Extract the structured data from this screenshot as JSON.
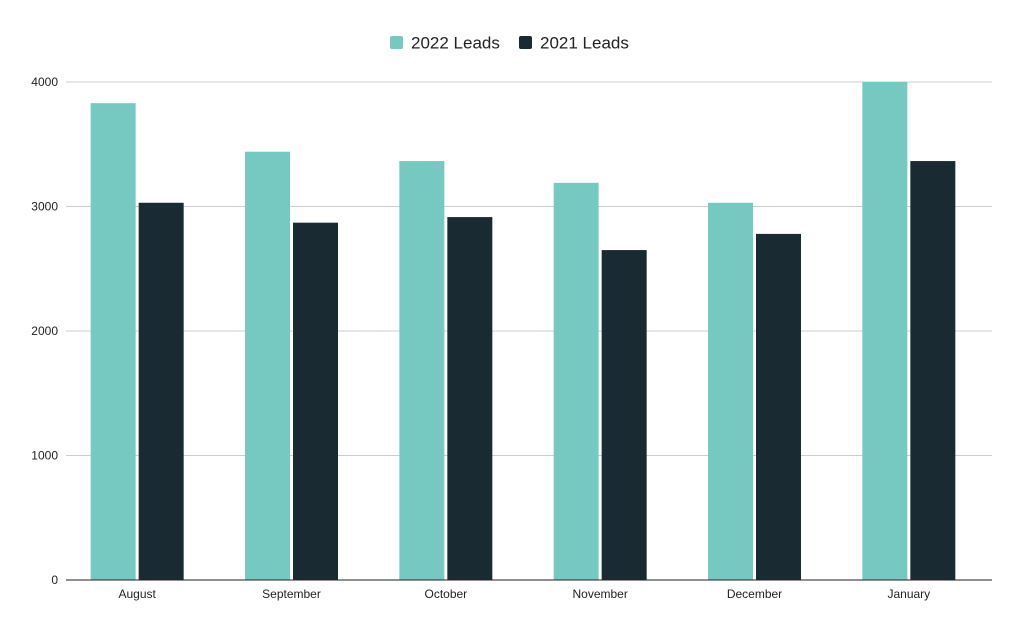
{
  "chart_data": {
    "type": "bar",
    "title": "",
    "xlabel": "",
    "ylabel": "",
    "categories": [
      "August",
      "September",
      "October",
      "November",
      "December",
      "January"
    ],
    "series": [
      {
        "name": "2022 Leads",
        "color": "#76c9c1",
        "values": [
          3830,
          3440,
          3365,
          3190,
          3030,
          4000
        ]
      },
      {
        "name": "2021 Leads",
        "color": "#192a32",
        "values": [
          3030,
          2870,
          2915,
          2650,
          2780,
          3365
        ]
      }
    ],
    "ylim": [
      0,
      4000
    ],
    "yticks": [
      0,
      1000,
      2000,
      3000,
      4000
    ],
    "grid": true,
    "legend_position": "top-center"
  }
}
